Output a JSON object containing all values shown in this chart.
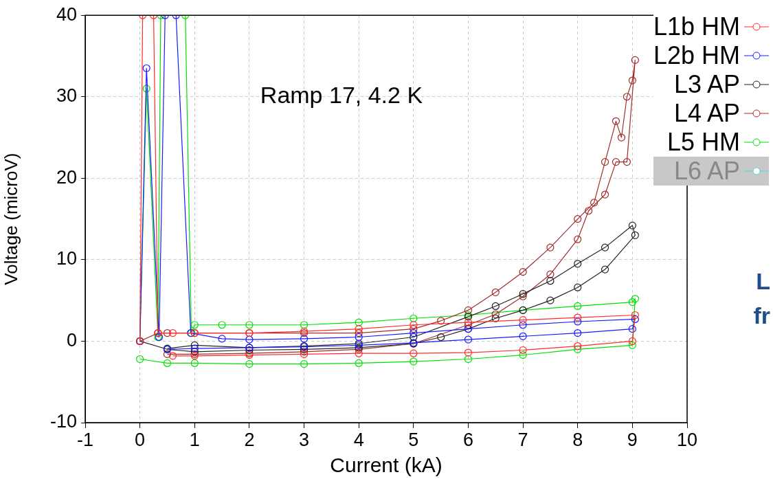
{
  "chart_data": {
    "type": "line",
    "xlabel": "Current (kA)",
    "ylabel": "Voltage (microV)",
    "annotations": [
      "Ramp 17, 4.2 K",
      "L",
      "fr"
    ],
    "xlim": [
      -1,
      10
    ],
    "xticks": [
      -1,
      0,
      1,
      2,
      3,
      4,
      5,
      6,
      7,
      8,
      9,
      10
    ],
    "ylim": [
      -10,
      40
    ],
    "yticks": [
      -10,
      0,
      10,
      20,
      30,
      40
    ],
    "grid": true,
    "legend": "top right",
    "marker": "circle",
    "line_style": "solid",
    "series": [
      {
        "name": "L1b HM",
        "color": "#ff2a2a",
        "x": [
          0,
          0.05,
          0.25,
          0.33,
          0.6,
          1,
          2,
          3,
          4,
          5,
          6,
          7,
          8,
          9.05,
          9,
          8,
          7,
          6,
          5,
          4,
          3,
          2,
          1,
          0.6
        ],
        "values": [
          0,
          40,
          40,
          1,
          1,
          1,
          1,
          1.2,
          1.5,
          2,
          2.3,
          2.6,
          2.9,
          3.2,
          0,
          -0.6,
          -1.1,
          -1.4,
          -1.5,
          -1.5,
          -1.6,
          -1.7,
          -1.8,
          -1.8
        ]
      },
      {
        "name": "L2b HM",
        "color": "#1a1aff",
        "x": [
          0,
          0.12,
          0.35,
          0.46,
          0.66,
          0.93,
          1.5,
          2,
          3,
          4,
          5,
          6,
          7,
          8,
          9.05,
          9,
          8,
          7,
          6,
          5,
          4,
          3,
          2,
          1,
          0.5
        ],
        "values": [
          0,
          33.5,
          0.5,
          40,
          40,
          1,
          0.3,
          0.2,
          0.3,
          0.5,
          1,
          1.5,
          2,
          2.4,
          2.7,
          1.5,
          1,
          0.6,
          0.2,
          -0.2,
          -0.5,
          -0.7,
          -0.8,
          -0.9,
          -1
        ]
      },
      {
        "name": "L3 AP",
        "color": "#222222",
        "x": [
          0,
          0.5,
          1,
          2,
          3,
          4,
          5,
          5.5,
          6,
          6.5,
          7,
          7.5,
          8,
          8.5,
          9.05,
          9,
          8.5,
          8,
          7.5,
          7,
          6.5,
          6,
          5,
          4,
          3,
          2,
          1,
          0.5
        ],
        "values": [
          0,
          -1,
          -1.3,
          -1.1,
          -1,
          -0.8,
          -0.3,
          0.5,
          1.5,
          2.8,
          3.8,
          5,
          6.6,
          8.8,
          13,
          14.2,
          11.5,
          9.5,
          7.4,
          5.8,
          4.3,
          3,
          0.5,
          -0.3,
          -0.6,
          -0.8,
          -0.5,
          -0.9
        ]
      },
      {
        "name": "L4 AP",
        "color": "#a52a2a",
        "x": [
          0,
          0.33,
          0.5,
          1,
          2,
          3,
          4,
          5,
          5.5,
          6,
          6.5,
          7,
          7.5,
          8,
          8.3,
          8.5,
          8.7,
          8.8,
          8.9,
          9,
          9.05,
          8.9,
          8.7,
          8.5,
          8.2,
          8,
          7.5,
          7,
          6.5,
          6,
          5,
          4,
          3,
          2,
          1,
          0.5
        ],
        "values": [
          0,
          1,
          1,
          1,
          1,
          1,
          1,
          1.5,
          2.5,
          3.8,
          6,
          8.5,
          11.5,
          15,
          17,
          22,
          27,
          25,
          30,
          32,
          34.5,
          22,
          22,
          18,
          16,
          12.5,
          8.2,
          5.5,
          3.3,
          2,
          -0.3,
          -1,
          -1.3,
          -1.5,
          -1.6,
          -1.6
        ]
      },
      {
        "name": "L5 HM",
        "color": "#00e000",
        "x": [
          0,
          0.12,
          0.33,
          0.38,
          0.83,
          0.94,
          1,
          1.5,
          2,
          3,
          4,
          5,
          6,
          7,
          8,
          9,
          9.05,
          9,
          8,
          7,
          6,
          5,
          4,
          3,
          2,
          1,
          0.5,
          0
        ],
        "values": [
          0,
          31,
          0.5,
          40,
          40,
          1,
          2,
          2,
          2,
          2,
          2.3,
          2.8,
          3.2,
          3.8,
          4.3,
          4.8,
          5.2,
          -0.5,
          -1,
          -1.7,
          -2.2,
          -2.5,
          -2.7,
          -2.8,
          -2.8,
          -2.7,
          -2.7,
          -2.2
        ]
      },
      {
        "name": "L6 AP",
        "color": "#4dd9e0"
      }
    ]
  }
}
